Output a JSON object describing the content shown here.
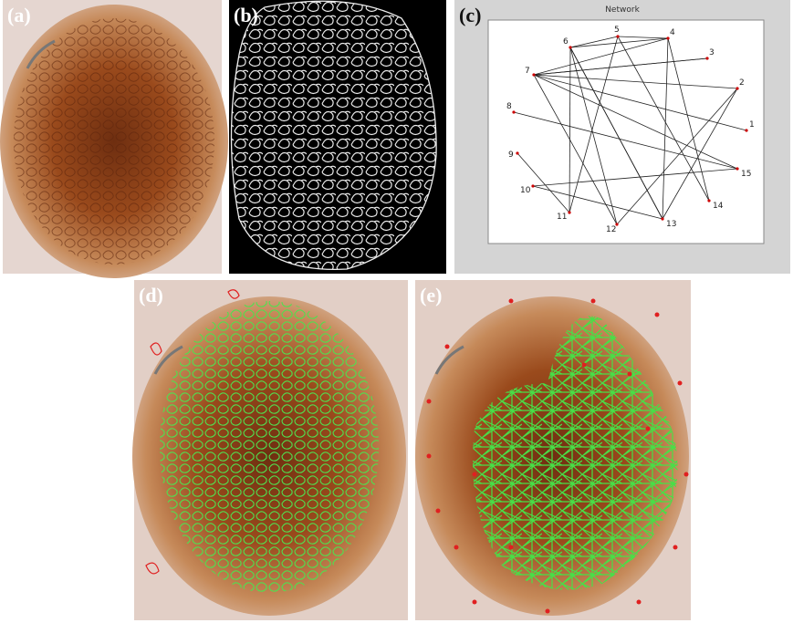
{
  "panels": {
    "a": {
      "label": "(a)"
    },
    "b": {
      "label": "(b)"
    },
    "c": {
      "label": "(c)",
      "title": "Network"
    },
    "d": {
      "label": "(d)"
    },
    "e": {
      "label": "(e)"
    }
  },
  "network": {
    "nodes": [
      {
        "label": "1"
      },
      {
        "label": "2"
      },
      {
        "label": "3"
      },
      {
        "label": "4"
      },
      {
        "label": "5"
      },
      {
        "label": "6"
      },
      {
        "label": "7"
      },
      {
        "label": "8"
      },
      {
        "label": "9"
      },
      {
        "label": "10"
      },
      {
        "label": "11"
      },
      {
        "label": "12"
      },
      {
        "label": "13"
      },
      {
        "label": "14"
      },
      {
        "label": "15"
      }
    ]
  }
}
